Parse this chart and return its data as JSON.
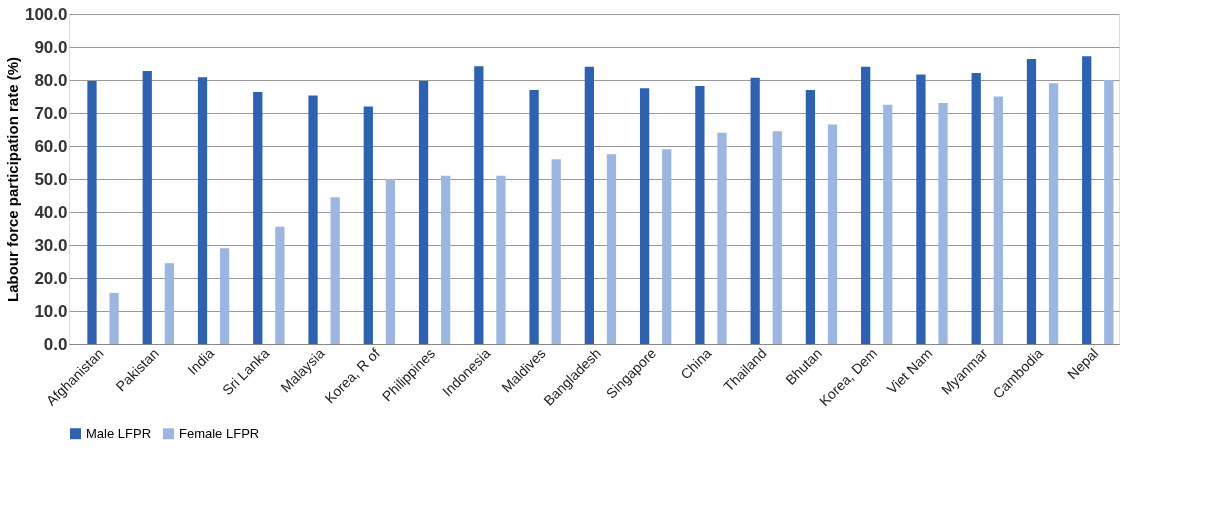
{
  "chart_data": {
    "type": "bar",
    "ylabel": "Labour force participation rate (%)",
    "categories": [
      "Afghanistan",
      "Pakistan",
      "India",
      "Sri Lanka",
      "Malaysia",
      "Korea, R of",
      "Philippines",
      "Indonesia",
      "Maldives",
      "Bangladesh",
      "Singapore",
      "China",
      "Thailand",
      "Bhutan",
      "Korea, Dem",
      "Viet Nam",
      "Myanmar",
      "Cambodia",
      "Nepal"
    ],
    "series": [
      {
        "name": "Male LFPR",
        "color": "#2e62b0",
        "values": [
          79.7,
          82.7,
          80.8,
          76.4,
          75.3,
          72.0,
          79.7,
          84.2,
          77.0,
          84.0,
          77.5,
          78.2,
          80.7,
          77.0,
          84.0,
          81.7,
          82.1,
          86.4,
          87.2
        ]
      },
      {
        "name": "Female LFPR",
        "color": "#9db6df",
        "values": [
          15.5,
          24.5,
          29.0,
          35.5,
          44.5,
          50.0,
          51.0,
          51.0,
          56.0,
          57.5,
          59.0,
          64.0,
          64.5,
          66.5,
          72.5,
          73.0,
          75.0,
          79.0,
          80.0
        ]
      }
    ],
    "ylim": [
      0,
      100
    ],
    "yticks": [
      {
        "value": 0,
        "label": "0.0"
      },
      {
        "value": 10,
        "label": "10.0"
      },
      {
        "value": 20,
        "label": "20.0"
      },
      {
        "value": 30,
        "label": "30.0"
      },
      {
        "value": 40,
        "label": "40.0"
      },
      {
        "value": 50,
        "label": "50.0"
      },
      {
        "value": 60,
        "label": "60.0"
      },
      {
        "value": 70,
        "label": "70.0"
      },
      {
        "value": 80,
        "label": "80.0"
      },
      {
        "value": 90,
        "label": "90.0"
      },
      {
        "value": 100,
        "label": "100.0"
      }
    ],
    "grid": "y",
    "legend": "bottom"
  }
}
